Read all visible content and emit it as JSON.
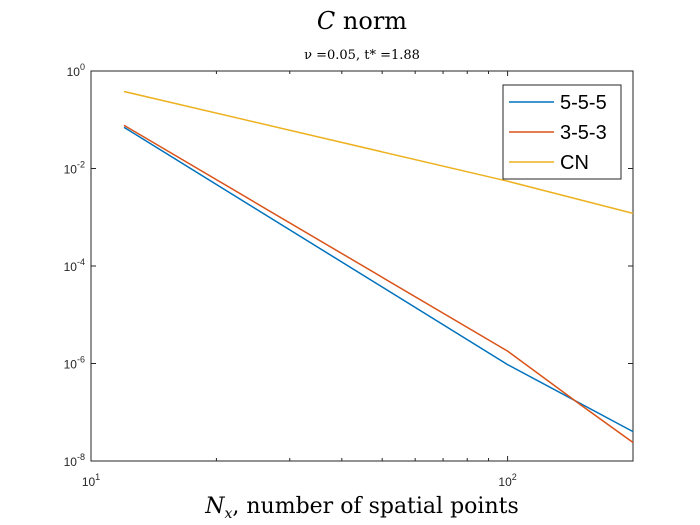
{
  "chart_data": {
    "type": "line",
    "title": "C norm",
    "subtitle": "ν =0.05, t* =1.88",
    "xlabel": "N_x, number of spatial points",
    "ylabel": "",
    "x_scale": "log",
    "y_scale": "log",
    "xlim": [
      10,
      200
    ],
    "ylim": [
      1e-08,
      1
    ],
    "x_ticks": [
      {
        "value": 10,
        "base": "10",
        "exp": "1"
      },
      {
        "value": 100,
        "base": "10",
        "exp": "2"
      }
    ],
    "y_ticks": [
      {
        "value": 1,
        "base": "10",
        "exp": "0"
      },
      {
        "value": 0.01,
        "base": "10",
        "exp": "-2"
      },
      {
        "value": 0.0001,
        "base": "10",
        "exp": "-4"
      },
      {
        "value": 1e-06,
        "base": "10",
        "exp": "-6"
      },
      {
        "value": 1e-08,
        "base": "10",
        "exp": "-8"
      }
    ],
    "grid": false,
    "legend_position": "top-right",
    "series": [
      {
        "name": "5-5-5",
        "color": "#0072BD",
        "x": [
          12,
          100,
          200
        ],
        "y": [
          0.07,
          9.5e-07,
          4e-08
        ]
      },
      {
        "name": "3-5-3",
        "color": "#D95319",
        "x": [
          12,
          100,
          150,
          200
        ],
        "y": [
          0.077,
          1.8e-06,
          1.4e-07,
          2.4e-08
        ]
      },
      {
        "name": "CN",
        "color": "#EDB120",
        "x": [
          12,
          100,
          200
        ],
        "y": [
          0.38,
          0.0055,
          0.0012
        ]
      }
    ]
  }
}
